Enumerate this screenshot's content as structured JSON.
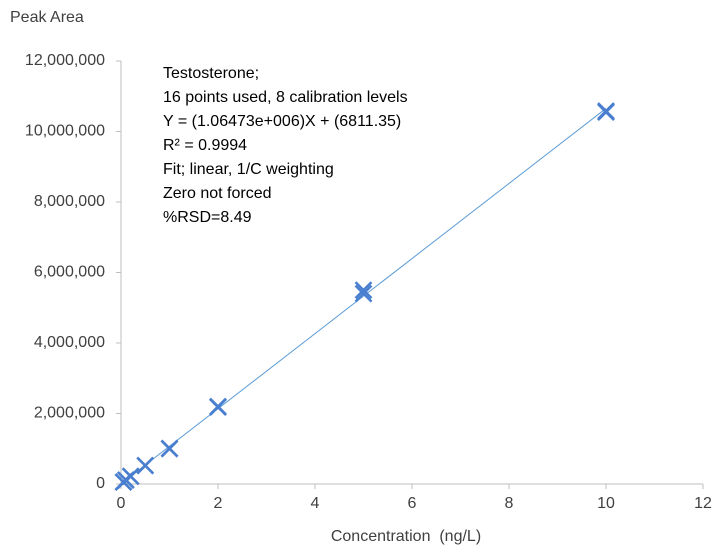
{
  "chart_data": {
    "type": "scatter",
    "ylabel": "Peak Area",
    "xlabel": "Concentration  (ng/L)",
    "annotations": [
      "Testosterone;",
      "16 points used, 8 calibration levels",
      "Y = (1.06473e+006)X + (6811.35)",
      "R² = 0.9994",
      "Fit; linear, 1/C weighting",
      "Zero not forced",
      "%RSD=8.49"
    ],
    "x": [
      0.05,
      0.05,
      0.1,
      0.1,
      0.2,
      0.2,
      0.5,
      0.5,
      1,
      1,
      2,
      2,
      5,
      5,
      10,
      10
    ],
    "series": [
      {
        "color": "#4a7fd0",
        "marker": "x",
        "values": [
          55000,
          58000,
          110000,
          112000,
          215000,
          220000,
          520000,
          525000,
          1000000,
          1010000,
          2180000,
          2200000,
          5400000,
          5500000,
          10550000,
          10580000
        ]
      }
    ],
    "trendline": {
      "color": "#5b9bd5",
      "x": [
        0.05,
        10
      ],
      "values": [
        60048,
        10654111
      ]
    },
    "xlim": [
      0,
      12
    ],
    "xticks": [
      0,
      2,
      4,
      6,
      8,
      10,
      12
    ],
    "ylim": [
      0,
      12000000
    ],
    "yticks": [
      0,
      {
        "value": 2000000,
        "label": "2,000,000"
      },
      {
        "value": 4000000,
        "label": "4,000,000"
      },
      {
        "value": 6000000,
        "label": "6,000,000"
      },
      {
        "value": 8000000,
        "label": "8,000,000"
      },
      {
        "value": 10000000,
        "label": "10,000,000"
      },
      {
        "value": 12000000,
        "label": "12,000,000"
      }
    ],
    "grid": false
  }
}
